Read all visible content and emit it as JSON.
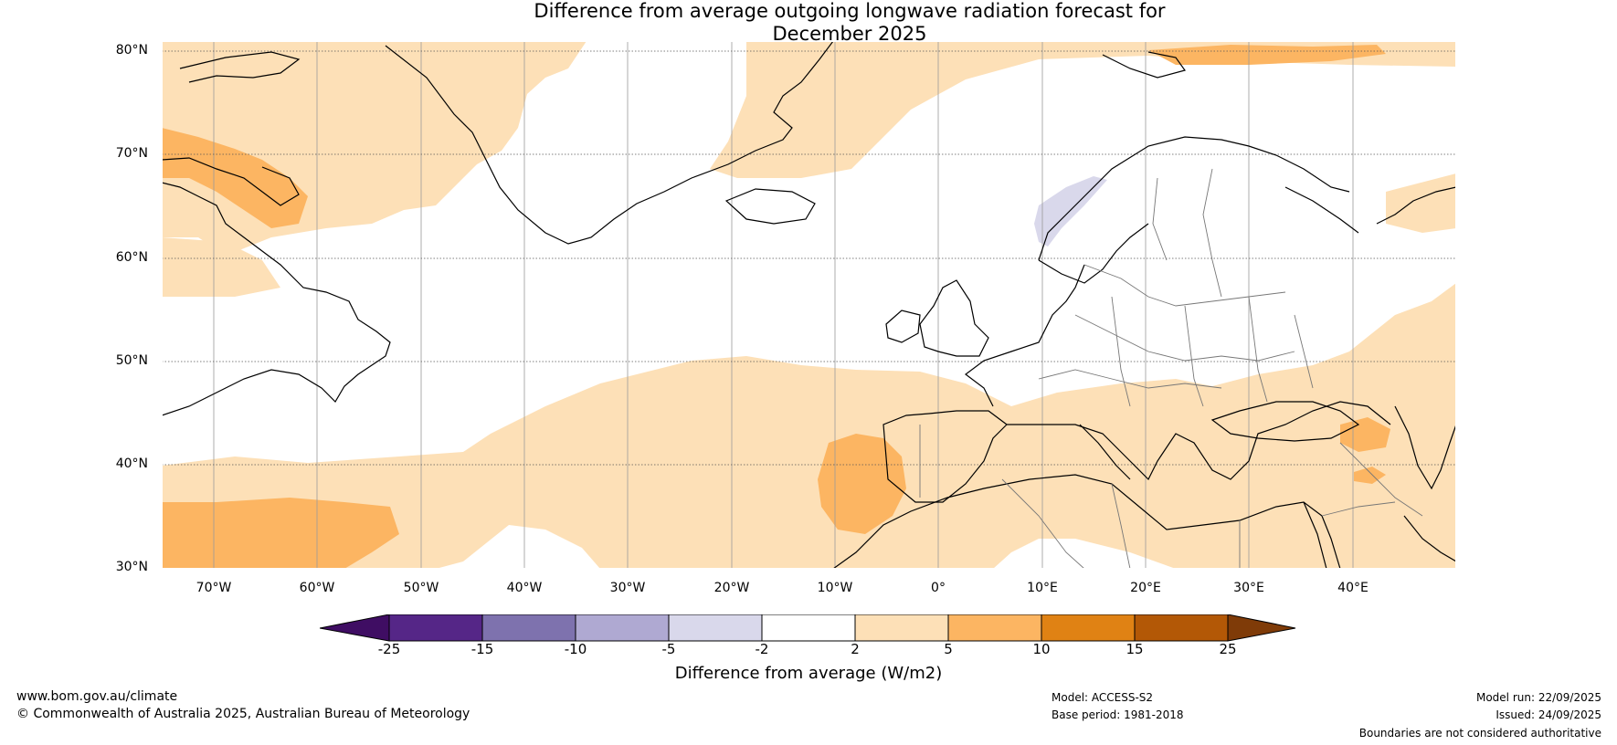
{
  "title": {
    "line1": "Difference from average outgoing longwave radiation forecast for",
    "line2": "December 2025"
  },
  "map": {
    "lat_labels": [
      "80°N",
      "70°N",
      "60°N",
      "50°N",
      "40°N",
      "30°N"
    ],
    "lon_labels": [
      "70°W",
      "60°W",
      "50°W",
      "40°W",
      "30°W",
      "20°W",
      "10°W",
      "0°",
      "10°E",
      "20°E",
      "30°E",
      "40°E"
    ],
    "extent": {
      "lon_min": -75,
      "lon_max": 50,
      "lat_min": 30,
      "lat_max": 81
    }
  },
  "legend": {
    "tick_labels": [
      "-25",
      "-15",
      "-10",
      "-5",
      "-2",
      "2",
      "5",
      "10",
      "15",
      "25"
    ],
    "colors": [
      "#3f0d63",
      "#552687",
      "#7e72ae",
      "#afa9d2",
      "#d9d8eb",
      "#ffffff",
      "#fde0b7",
      "#fcb562",
      "#e08214",
      "#b35806",
      "#7f3b08"
    ],
    "label": "Difference from average (W/m2)"
  },
  "footer": {
    "website": "www.bom.gov.au/climate",
    "copyright": "© Commonwealth of Australia 2025, Australian Bureau of Meteorology",
    "model": "Model: ACCESS-S2",
    "base_period": "Base period: 1981-2018",
    "model_run": "Model run: 22/09/2025",
    "issued": "Issued: 24/09/2025",
    "disclaimer": "Boundaries are not considered authoritative"
  }
}
